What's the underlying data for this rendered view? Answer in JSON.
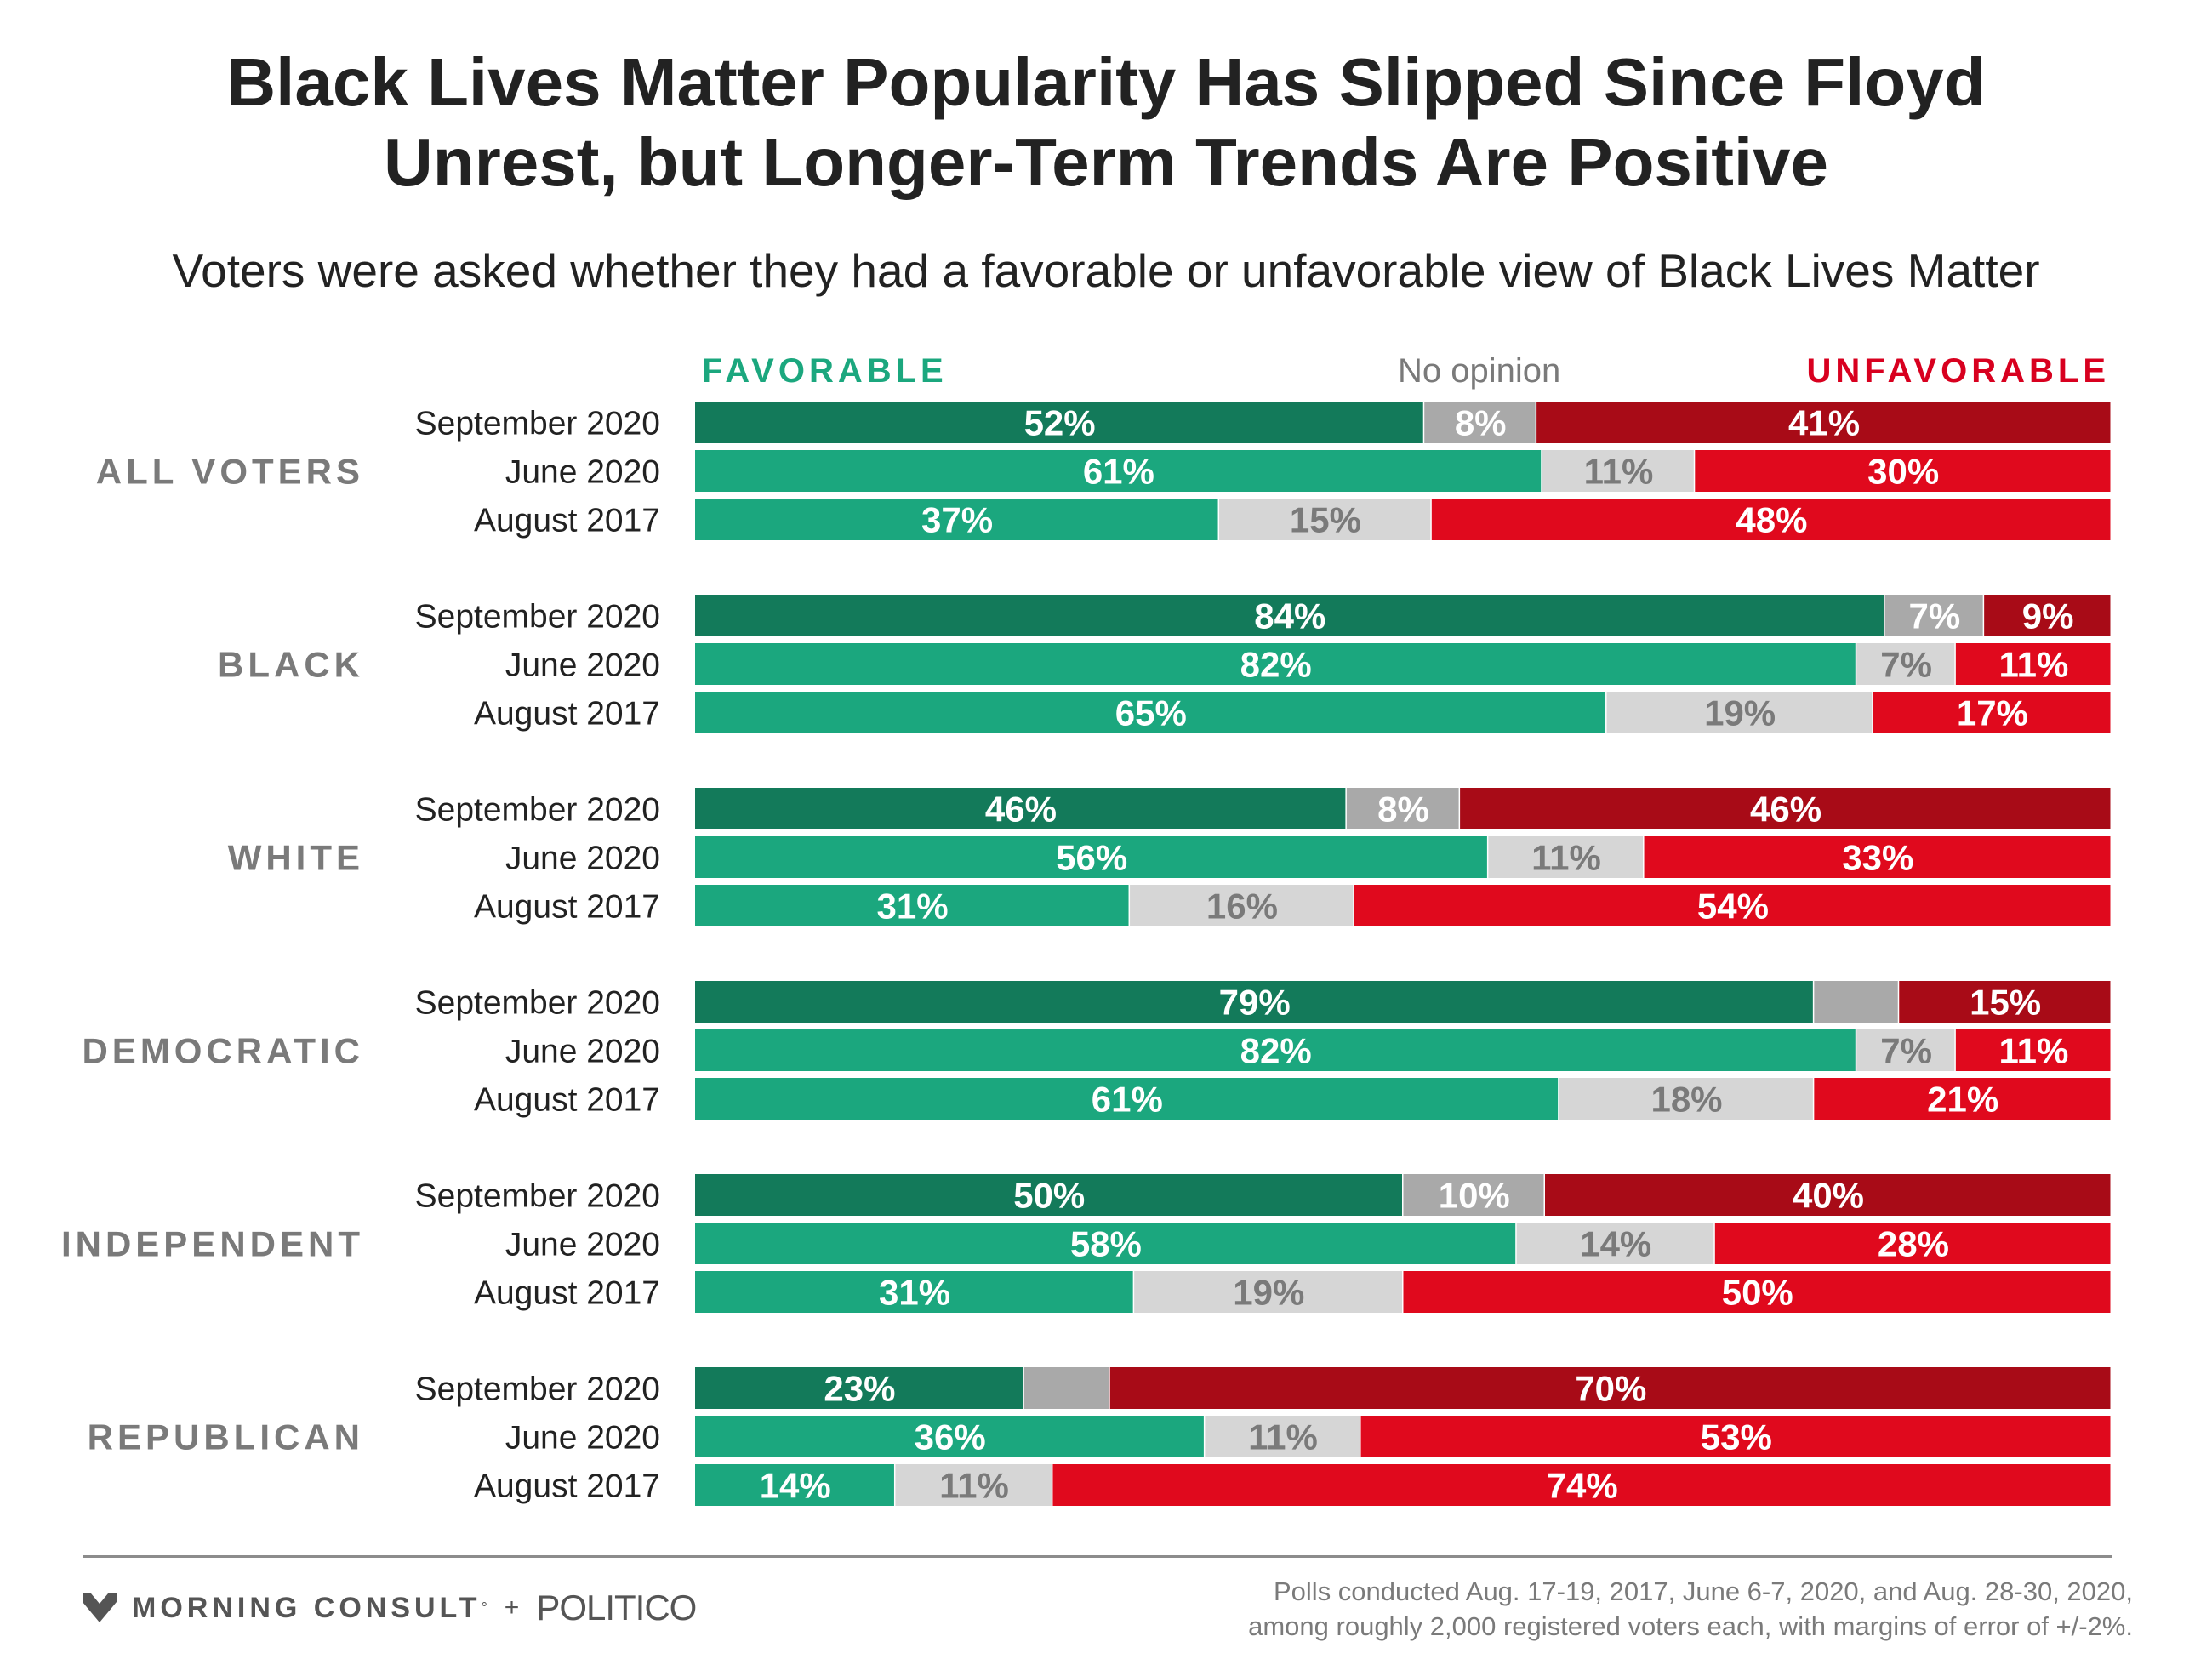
{
  "title": {
    "line1": "Black Lives Matter Popularity Has Slipped Since Floyd",
    "line2": "Unrest, but Longer-Term Trends Are Positive"
  },
  "subtitle": "Voters were asked whether they had a favorable or unfavorable view of Black Lives Matter",
  "headers": {
    "favorable": "FAVORABLE",
    "no_opinion": "No opinion",
    "unfavorable": "UNFAVORABLE"
  },
  "colors": {
    "fav_dark": "#137a5a",
    "fav": "#1ba77e",
    "no_dark": "#a9a9a9",
    "no": "#d6d6d6",
    "unfav_dark": "#a80b17",
    "unfav": "#e0091d",
    "group_label": "#7a7a7a",
    "text": "#222222"
  },
  "chart_data": {
    "type": "bar",
    "orientation": "horizontal",
    "stacked": true,
    "normalized": true,
    "series": [
      {
        "name": "FAVORABLE"
      },
      {
        "name": "No opinion"
      },
      {
        "name": "UNFAVORABLE"
      }
    ],
    "groups": [
      {
        "name": "ALL VOTERS",
        "rows": [
          {
            "label": "September 2020",
            "values": [
              52,
              8,
              41
            ],
            "labels": [
              "52%",
              "8%",
              "41%"
            ]
          },
          {
            "label": "June 2020",
            "values": [
              61,
              11,
              30
            ],
            "labels": [
              "61%",
              "11%",
              "30%"
            ]
          },
          {
            "label": "August 2017",
            "values": [
              37,
              15,
              48
            ],
            "labels": [
              "37%",
              "15%",
              "48%"
            ]
          }
        ]
      },
      {
        "name": "BLACK",
        "rows": [
          {
            "label": "September 2020",
            "values": [
              84,
              7,
              9
            ],
            "labels": [
              "84%",
              "7%",
              "9%"
            ]
          },
          {
            "label": "June 2020",
            "values": [
              82,
              7,
              11
            ],
            "labels": [
              "82%",
              "7%",
              "11%"
            ]
          },
          {
            "label": "August 2017",
            "values": [
              65,
              19,
              17
            ],
            "labels": [
              "65%",
              "19%",
              "17%"
            ]
          }
        ]
      },
      {
        "name": "WHITE",
        "rows": [
          {
            "label": "September 2020",
            "values": [
              46,
              8,
              46
            ],
            "labels": [
              "46%",
              "8%",
              "46%"
            ]
          },
          {
            "label": "June 2020",
            "values": [
              56,
              11,
              33
            ],
            "labels": [
              "56%",
              "11%",
              "33%"
            ]
          },
          {
            "label": "August 2017",
            "values": [
              31,
              16,
              54
            ],
            "labels": [
              "31%",
              "16%",
              "54%"
            ]
          }
        ]
      },
      {
        "name": "DEMOCRATIC",
        "rows": [
          {
            "label": "September 2020",
            "values": [
              79,
              6,
              15
            ],
            "labels": [
              "79%",
              "",
              "15%"
            ]
          },
          {
            "label": "June 2020",
            "values": [
              82,
              7,
              11
            ],
            "labels": [
              "82%",
              "7%",
              "11%"
            ]
          },
          {
            "label": "August 2017",
            "values": [
              61,
              18,
              21
            ],
            "labels": [
              "61%",
              "18%",
              "21%"
            ]
          }
        ]
      },
      {
        "name": "INDEPENDENT",
        "rows": [
          {
            "label": "September 2020",
            "values": [
              50,
              10,
              40
            ],
            "labels": [
              "50%",
              "10%",
              "40%"
            ]
          },
          {
            "label": "June 2020",
            "values": [
              58,
              14,
              28
            ],
            "labels": [
              "58%",
              "14%",
              "28%"
            ]
          },
          {
            "label": "August 2017",
            "values": [
              31,
              19,
              50
            ],
            "labels": [
              "31%",
              "19%",
              "50%"
            ]
          }
        ]
      },
      {
        "name": "REPUBLICAN",
        "rows": [
          {
            "label": "September 2020",
            "values": [
              23,
              6,
              70
            ],
            "labels": [
              "23%",
              "",
              "70%"
            ]
          },
          {
            "label": "June 2020",
            "values": [
              36,
              11,
              53
            ],
            "labels": [
              "36%",
              "11%",
              "53%"
            ]
          },
          {
            "label": "August 2017",
            "values": [
              14,
              11,
              74
            ],
            "labels": [
              "14%",
              "11%",
              "74%"
            ]
          }
        ]
      }
    ]
  },
  "footer": {
    "brand1": "MORNING CONSULT",
    "brand1_mark": "°",
    "plus": "+",
    "brand2": "POLITICO",
    "note_line1": "Polls conducted Aug. 17-19, 2017, June 6-7, 2020, and Aug. 28-30, 2020,",
    "note_line2": "among roughly 2,000 registered voters each, with margins of error of +/-2%."
  }
}
